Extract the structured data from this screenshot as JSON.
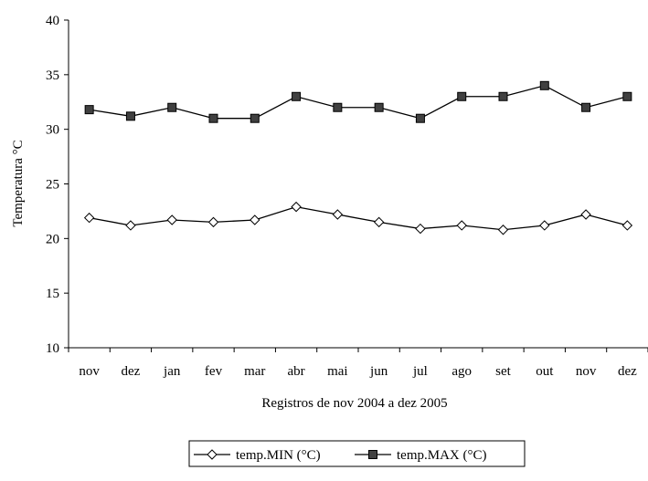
{
  "chart_data": {
    "type": "line",
    "xlabel": "Registros de nov 2004 a dez 2005",
    "ylabel": "Temperatura °C",
    "categories": [
      "nov",
      "dez",
      "jan",
      "fev",
      "mar",
      "abr",
      "mai",
      "jun",
      "jul",
      "ago",
      "set",
      "out",
      "nov",
      "dez"
    ],
    "ylim": [
      10,
      40
    ],
    "yticks": [
      10,
      15,
      20,
      25,
      30,
      35,
      40
    ],
    "grid": false,
    "legend_position": "bottom",
    "series": [
      {
        "name": "temp.MIN (°C)",
        "marker": "diamond-open",
        "color": "#000000",
        "values": [
          21.9,
          21.2,
          21.7,
          21.5,
          21.7,
          22.9,
          22.2,
          21.5,
          20.9,
          21.2,
          20.8,
          21.2,
          22.2,
          21.2
        ]
      },
      {
        "name": "temp.MAX (°C)",
        "marker": "square-filled",
        "color": "#000000",
        "values": [
          31.8,
          31.2,
          32.0,
          31.0,
          31.0,
          33.0,
          32.0,
          32.0,
          31.0,
          33.0,
          33.0,
          34.0,
          32.0,
          33.0
        ]
      }
    ]
  }
}
